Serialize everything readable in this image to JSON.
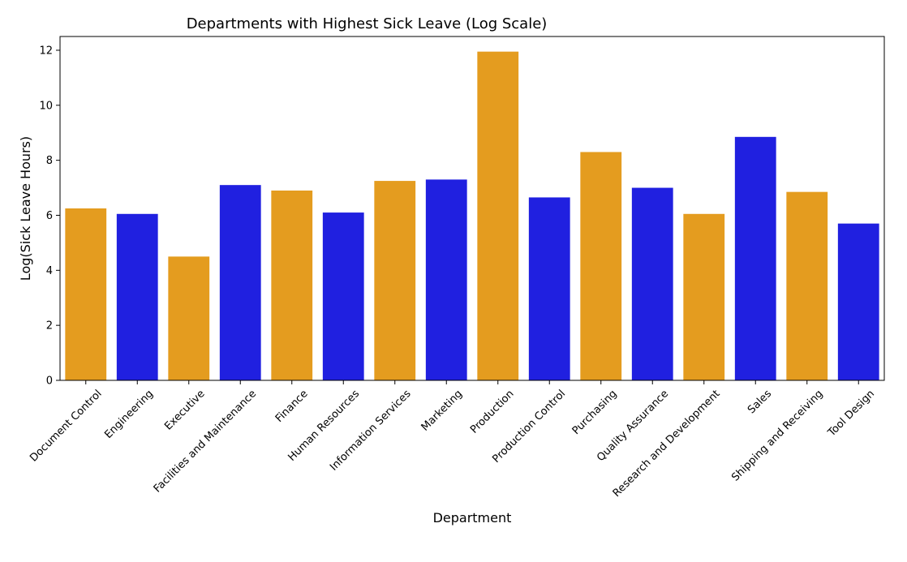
{
  "chart_data": {
    "type": "bar",
    "title": "Departments with Highest Sick Leave (Log Scale)",
    "xlabel": "Department",
    "ylabel": "Log(Sick Leave Hours)",
    "ylim": [
      0,
      12.5
    ],
    "yticks": [
      0,
      2,
      4,
      6,
      8,
      10,
      12
    ],
    "grid": false,
    "legend": "none",
    "colors": [
      "#e49c1f",
      "#2020e0"
    ],
    "categories": [
      "Document Control",
      "Engineering",
      "Executive",
      "Facilities and Maintenance",
      "Finance",
      "Human Resources",
      "Information Services",
      "Marketing",
      "Production",
      "Production Control",
      "Purchasing",
      "Quality Assurance",
      "Research and Development",
      "Sales",
      "Shipping and Receiving",
      "Tool Design"
    ],
    "values": [
      6.25,
      6.05,
      4.5,
      7.1,
      6.9,
      6.1,
      7.25,
      7.3,
      11.95,
      6.65,
      8.3,
      7.0,
      6.05,
      8.85,
      6.85,
      5.7
    ],
    "bar_colors": [
      "#e49c1f",
      "#2020e0",
      "#e49c1f",
      "#2020e0",
      "#e49c1f",
      "#2020e0",
      "#e49c1f",
      "#2020e0",
      "#e49c1f",
      "#2020e0",
      "#e49c1f",
      "#2020e0",
      "#e49c1f",
      "#2020e0",
      "#e49c1f",
      "#2020e0"
    ]
  }
}
